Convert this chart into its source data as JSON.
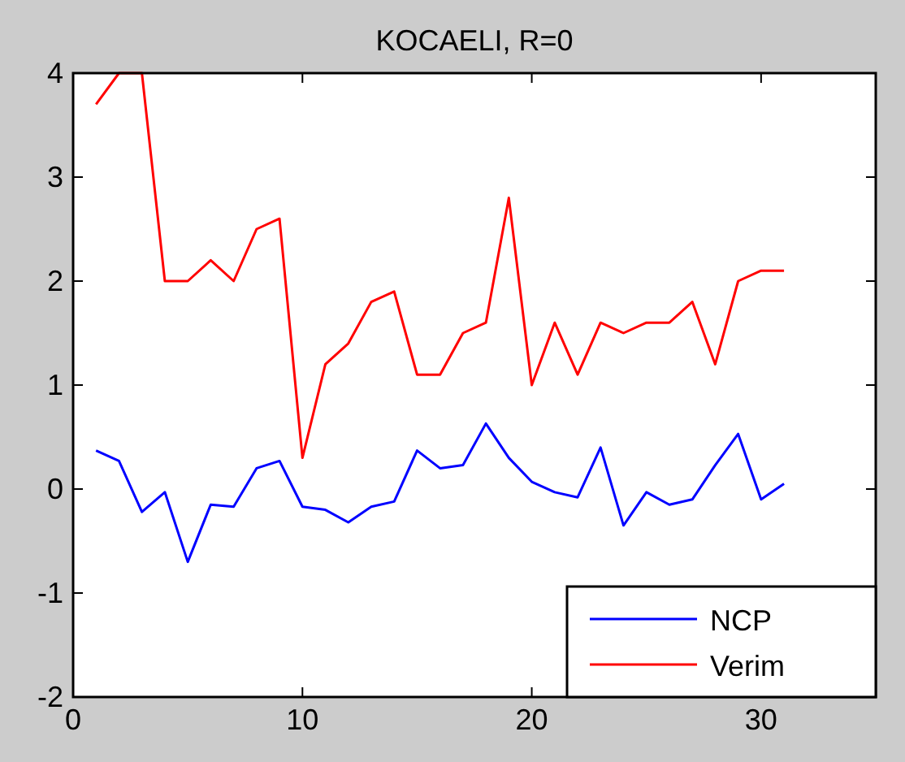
{
  "chart_data": {
    "type": "line",
    "title": "KOCAELI, R=0",
    "x": [
      1,
      2,
      3,
      4,
      5,
      6,
      7,
      8,
      9,
      10,
      11,
      12,
      13,
      14,
      15,
      16,
      17,
      18,
      19,
      20,
      21,
      22,
      23,
      24,
      25,
      26,
      27,
      28,
      29,
      30,
      31
    ],
    "series": [
      {
        "name": "NCP",
        "color": "#0000ff",
        "values": [
          0.37,
          0.27,
          -0.22,
          -0.03,
          -0.7,
          -0.15,
          -0.17,
          0.2,
          0.27,
          -0.17,
          -0.2,
          -0.32,
          -0.17,
          -0.12,
          0.37,
          0.2,
          0.23,
          0.63,
          0.3,
          0.07,
          -0.03,
          -0.08,
          0.4,
          -0.35,
          -0.03,
          -0.15,
          -0.1,
          0.23,
          0.53,
          -0.1,
          0.05
        ]
      },
      {
        "name": "Verim",
        "color": "#ff0000",
        "values": [
          3.7,
          4.0,
          4.0,
          2.0,
          2.0,
          2.2,
          2.0,
          2.5,
          2.6,
          0.3,
          1.2,
          1.4,
          1.8,
          1.9,
          1.1,
          1.1,
          1.5,
          1.6,
          2.8,
          1.0,
          1.6,
          1.1,
          1.6,
          1.5,
          1.6,
          1.6,
          1.8,
          1.2,
          2.0,
          2.1,
          2.1
        ]
      }
    ],
    "xlim": [
      0,
      35
    ],
    "xticks": [
      0,
      10,
      20,
      30
    ],
    "ylim": [
      -2,
      4
    ],
    "yticks": [
      -2,
      -1,
      0,
      1,
      2,
      3,
      4
    ],
    "grid": false,
    "legend": "bottom right"
  }
}
